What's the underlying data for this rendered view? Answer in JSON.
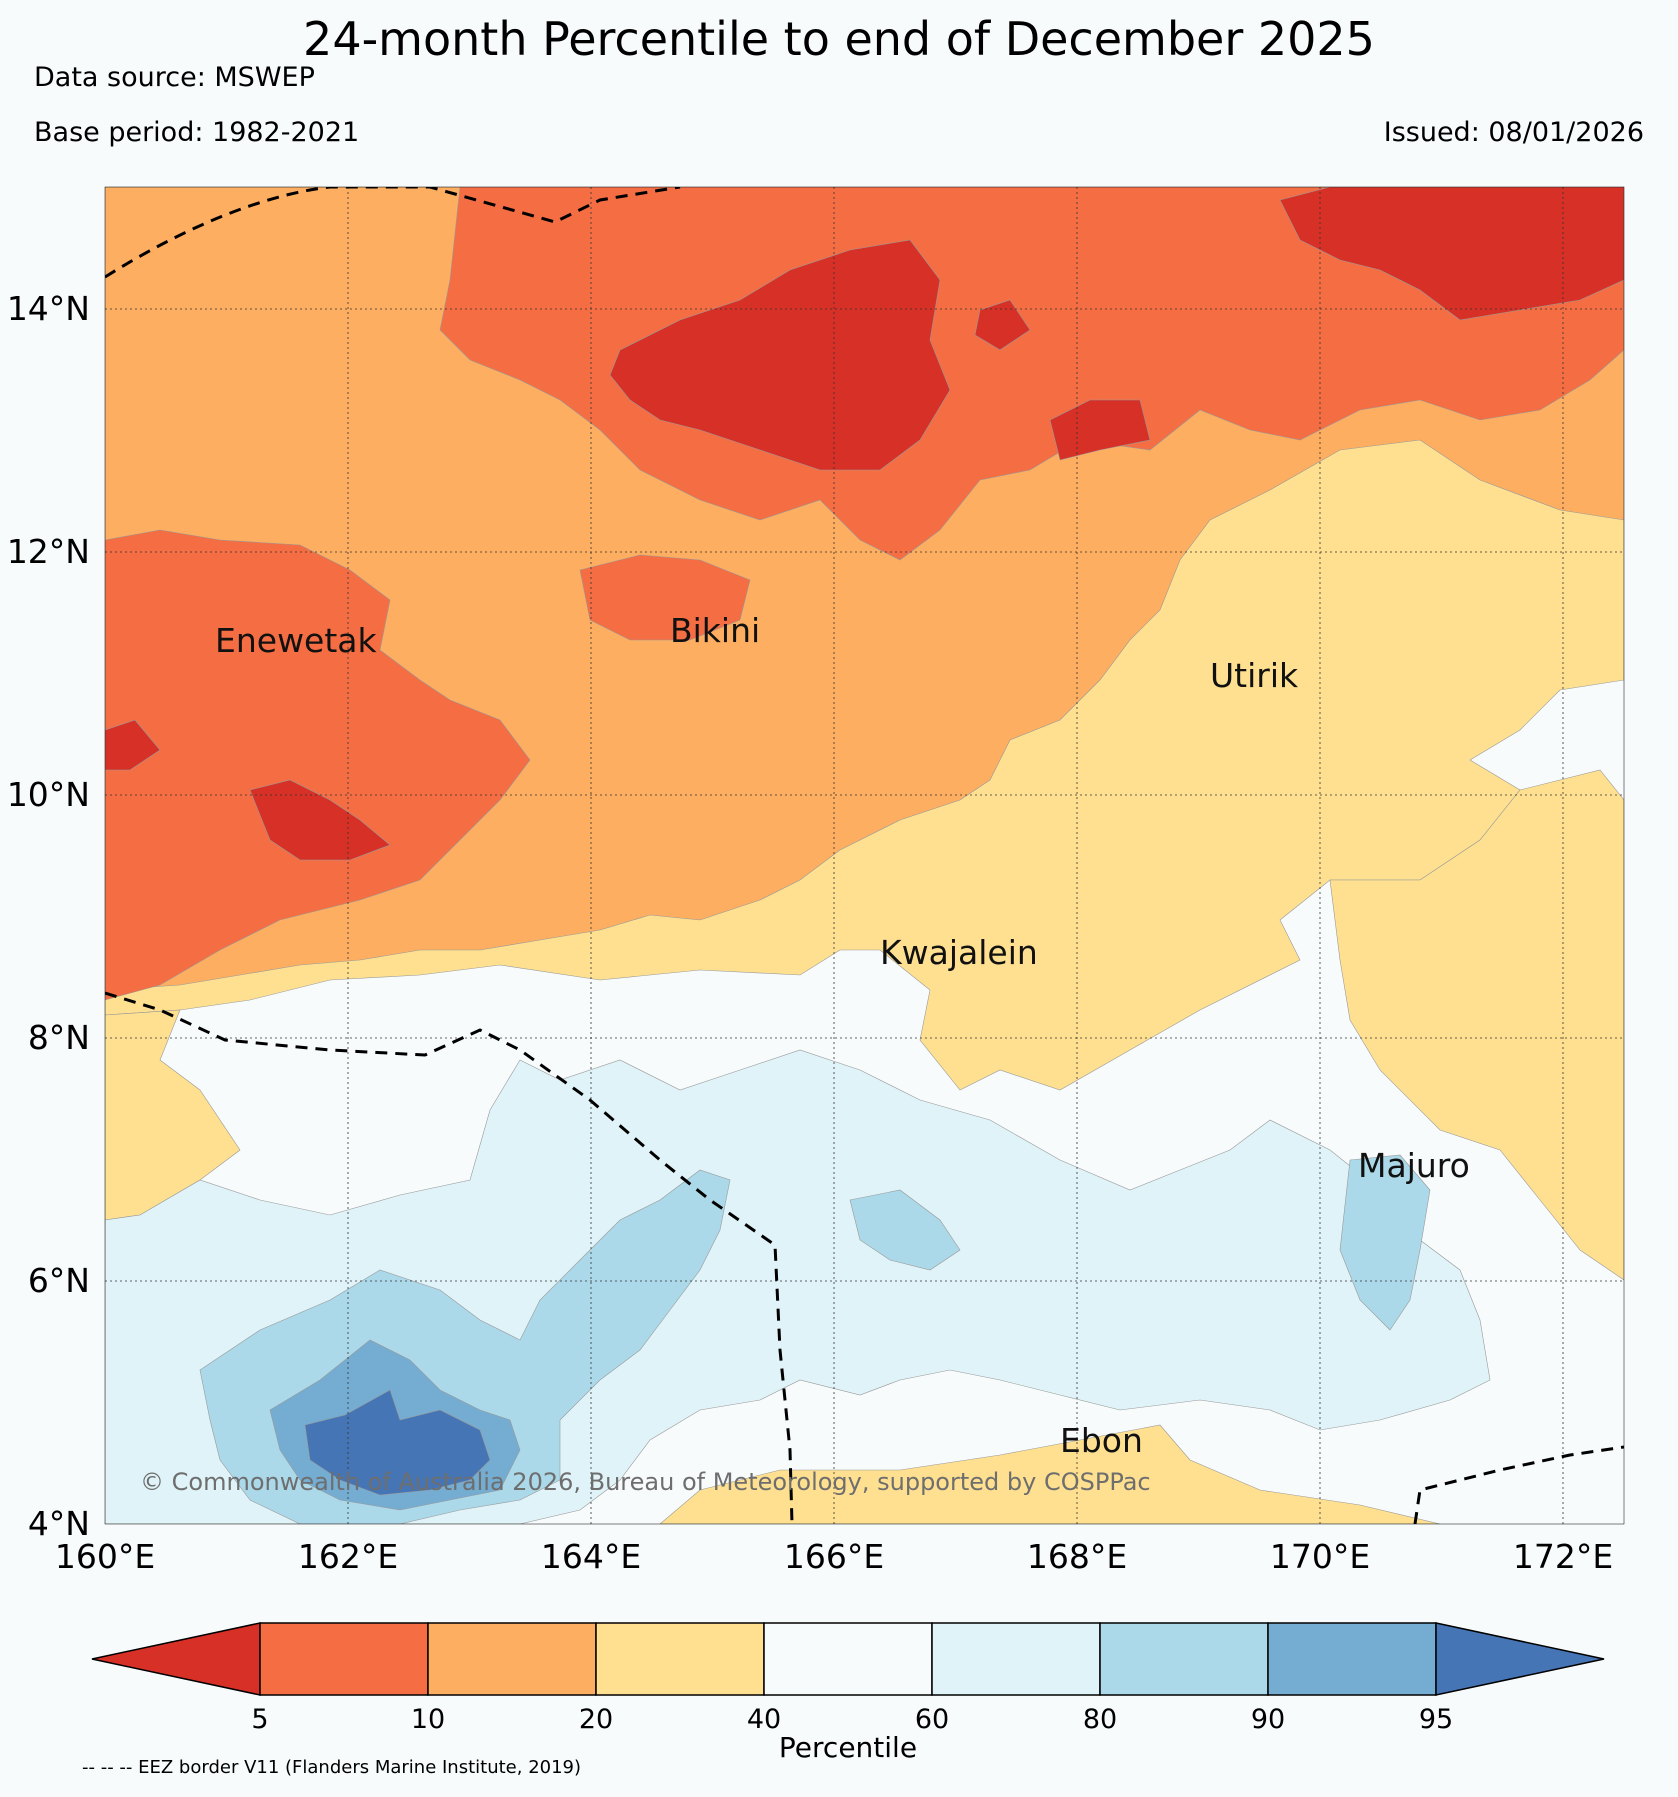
{
  "title": "24-month Percentile to end of December 2025",
  "data_source": "Data source: MSWEP",
  "base_period": "Base period: 1982-2021",
  "issued": "Issued: 08/01/2026",
  "map": {
    "lat_labels": [
      "14°N",
      "12°N",
      "10°N",
      "8°N",
      "6°N",
      "4°N"
    ],
    "lon_labels": [
      "160°E",
      "162°E",
      "164°E",
      "166°E",
      "168°E",
      "170°E",
      "172°E"
    ],
    "places": [
      "Enewetak",
      "Bikini",
      "Utirik",
      "Kwajalein",
      "Majuro",
      "Ebon"
    ],
    "copyright": "© Commonwealth of Australia 2026, Bureau of Meteorology, supported by COSPPac"
  },
  "colorbar": {
    "ticks": [
      "5",
      "10",
      "20",
      "40",
      "60",
      "80",
      "90",
      "95"
    ],
    "label": "Percentile",
    "colors": [
      "#d73027",
      "#f46d43",
      "#fdae61",
      "#fee090",
      "#f7fbfc",
      "#e0f3f8",
      "#abd9e9",
      "#74add1",
      "#4575b4"
    ]
  },
  "footnote": "-- -- -- EEZ border V11 (Flanders Marine Institute, 2019)"
}
